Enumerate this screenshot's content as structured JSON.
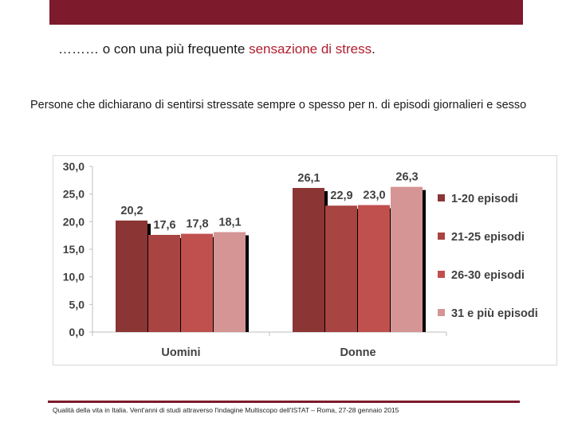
{
  "slide": {
    "title_prefix": "……… o con una più frequente ",
    "title_accent": "sensazione di stress",
    "title_suffix": ".",
    "subtitle": "Persone che dichiarano di sentirsi stressate sempre o spesso per n. di episodi giornalieri e sesso",
    "footer": "Qualità della vita in Italia. Vent'anni di studi attraverso l'indagine Multiscopo dell'ISTAT – Roma, 27-28 gennaio 2015"
  },
  "colors": {
    "band": "#7d1a2c",
    "accent": "#b01e2f",
    "series": [
      "#8b3535",
      "#a84441",
      "#c0504d",
      "#d49594"
    ]
  },
  "chart_data": {
    "type": "bar",
    "categories": [
      "Uomini",
      "Donne"
    ],
    "series": [
      {
        "name": "1-20 episodi",
        "values": [
          20.2,
          26.1
        ],
        "labels": [
          "20,2",
          "26,1"
        ]
      },
      {
        "name": "21-25 episodi",
        "values": [
          17.6,
          22.9
        ],
        "labels": [
          "17,6",
          "22,9"
        ]
      },
      {
        "name": "26-30 episodi",
        "values": [
          17.8,
          23.0
        ],
        "labels": [
          "17,8",
          "23,0"
        ]
      },
      {
        "name": "31 e più episodi",
        "values": [
          18.1,
          26.3
        ],
        "labels": [
          "18,1",
          "26,3"
        ]
      }
    ],
    "ylim": [
      0,
      30
    ],
    "yticks": [
      "0,0",
      "5,0",
      "10,0",
      "15,0",
      "20,0",
      "25,0",
      "30,0"
    ],
    "legend_position": "right",
    "title": "",
    "xlabel": "",
    "ylabel": ""
  }
}
